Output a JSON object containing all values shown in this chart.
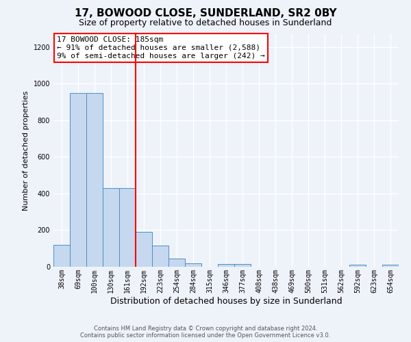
{
  "title": "17, BOWOOD CLOSE, SUNDERLAND, SR2 0BY",
  "subtitle": "Size of property relative to detached houses in Sunderland",
  "xlabel": "Distribution of detached houses by size in Sunderland",
  "ylabel": "Number of detached properties",
  "footnote1": "Contains HM Land Registry data © Crown copyright and database right 2024.",
  "footnote2": "Contains public sector information licensed under the Open Government Licence v3.0.",
  "bin_labels": [
    "38sqm",
    "69sqm",
    "100sqm",
    "130sqm",
    "161sqm",
    "192sqm",
    "223sqm",
    "254sqm",
    "284sqm",
    "315sqm",
    "346sqm",
    "377sqm",
    "408sqm",
    "438sqm",
    "469sqm",
    "500sqm",
    "531sqm",
    "562sqm",
    "592sqm",
    "623sqm",
    "654sqm"
  ],
  "bar_values": [
    120,
    950,
    950,
    430,
    430,
    190,
    115,
    45,
    20,
    0,
    15,
    15,
    0,
    0,
    0,
    0,
    0,
    0,
    10,
    0,
    10
  ],
  "bar_color": "#c5d8f0",
  "bar_edge_color": "#4a90c4",
  "vline_x_index": 5,
  "vline_color": "red",
  "annotation_title": "17 BOWOOD CLOSE: 185sqm",
  "annotation_line1": "← 91% of detached houses are smaller (2,588)",
  "annotation_line2": "9% of semi-detached houses are larger (242) →",
  "annotation_box_color": "white",
  "annotation_box_edge": "red",
  "ylim": [
    0,
    1270
  ],
  "yticks": [
    0,
    200,
    400,
    600,
    800,
    1000,
    1200
  ],
  "bg_color": "#eef2f9",
  "title_fontsize": 11,
  "subtitle_fontsize": 9,
  "xlabel_fontsize": 9,
  "ylabel_fontsize": 8,
  "tick_fontsize": 7,
  "ann_fontsize": 8,
  "footnote_fontsize": 6
}
